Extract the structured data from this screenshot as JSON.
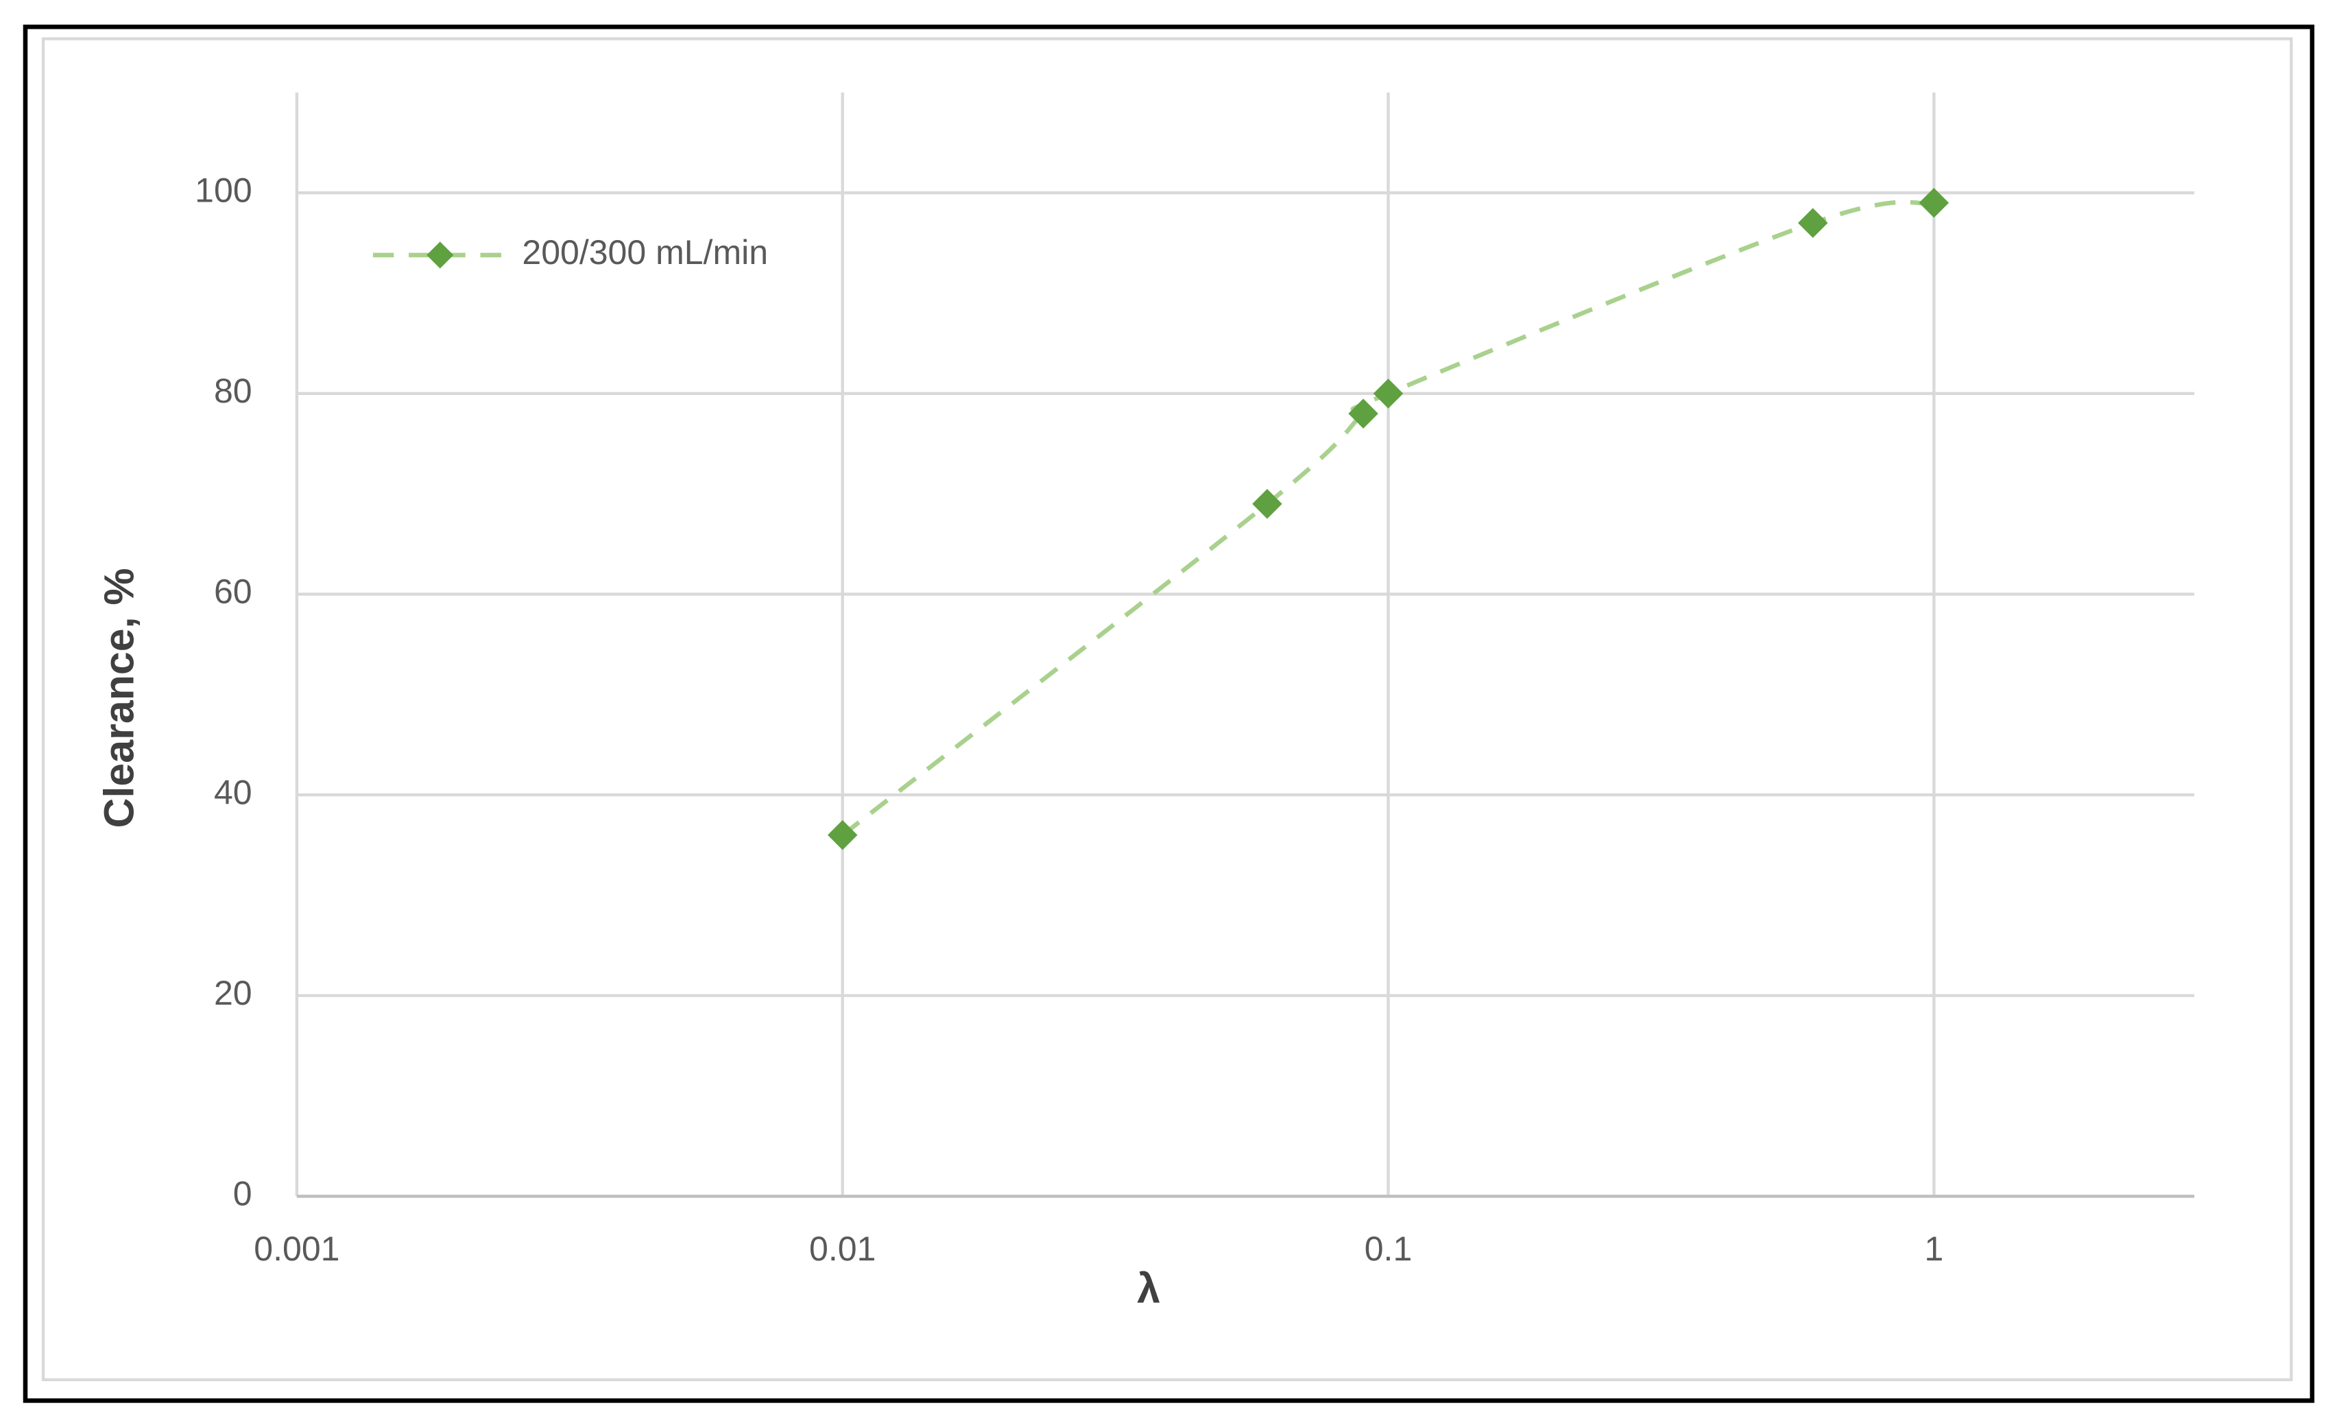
{
  "chart_data": {
    "type": "scatter",
    "x_label": "λ",
    "y_label": "Clearance, %",
    "x": [
      0.01,
      0.06,
      0.09,
      0.1,
      0.6,
      1
    ],
    "series": [
      {
        "name": "200/300 mL/min",
        "color": "#5fa040",
        "line_color": "#a9d18e",
        "values": [
          36,
          69,
          78,
          80,
          97,
          99
        ]
      }
    ],
    "xlim": [
      0.001,
      3
    ],
    "xticks": [
      0.001,
      0.01,
      0.1,
      1
    ],
    "log_x": true,
    "ylim": [
      0,
      110
    ],
    "yticks": [
      0,
      20,
      40,
      60,
      80,
      100
    ],
    "grid": true,
    "smooth": true,
    "dashed": true,
    "legend": "top-left"
  }
}
